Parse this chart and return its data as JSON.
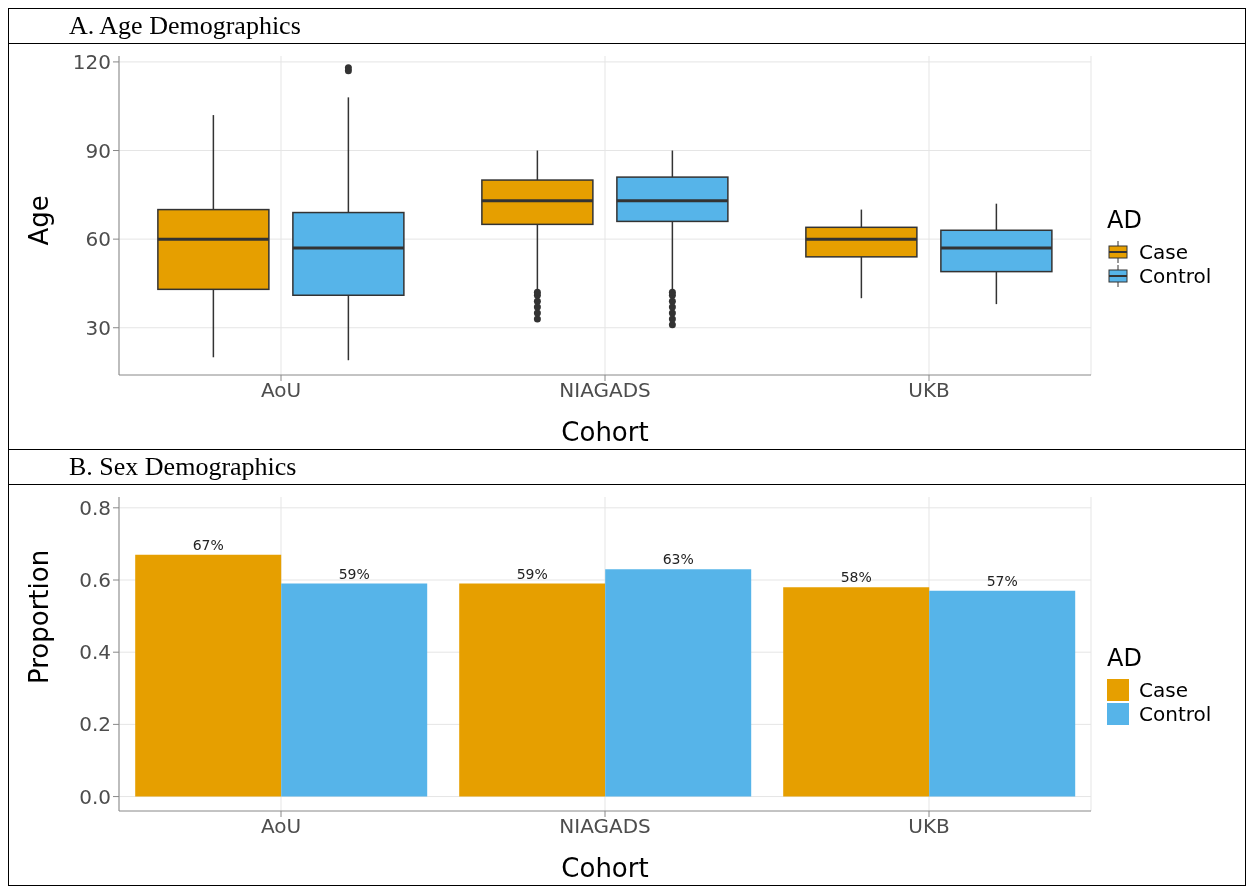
{
  "chart_data": [
    {
      "type": "box",
      "title": "A.  Age Demographics",
      "xlabel": "Cohort",
      "ylabel": "Age",
      "legend_title": "AD",
      "categories": [
        "AoU",
        "NIAGADS",
        "UKB"
      ],
      "series": [
        {
          "name": "Case",
          "color": "#e69f00",
          "boxes": [
            {
              "low": 20,
              "q1": 43,
              "median": 60,
              "q3": 70,
              "high": 102
            },
            {
              "low": 43,
              "q1": 65,
              "median": 73,
              "q3": 80,
              "high": 90,
              "outliers": [
                33,
                35,
                37,
                39,
                41,
                42
              ]
            },
            {
              "low": 40,
              "q1": 54,
              "median": 60,
              "q3": 64,
              "high": 70
            }
          ]
        },
        {
          "name": "Control",
          "color": "#56b4e9",
          "boxes": [
            {
              "low": 19,
              "q1": 41,
              "median": 57,
              "q3": 69,
              "high": 108,
              "outliers": [
                117,
                118
              ]
            },
            {
              "low": 43,
              "q1": 66,
              "median": 73,
              "q3": 81,
              "high": 90,
              "outliers": [
                31,
                33,
                35,
                37,
                39,
                41,
                42
              ]
            },
            {
              "low": 38,
              "q1": 49,
              "median": 57,
              "q3": 63,
              "high": 72
            }
          ]
        }
      ],
      "ylim": [
        14,
        122
      ],
      "yticks": [
        30,
        60,
        90,
        120
      ],
      "grid": true,
      "legend": "right"
    },
    {
      "type": "bar",
      "title": "B.  Sex Demographics",
      "xlabel": "Cohort",
      "ylabel": "Proportion",
      "legend_title": "AD",
      "categories": [
        "AoU",
        "NIAGADS",
        "UKB"
      ],
      "series": [
        {
          "name": "Case",
          "color": "#e69f00",
          "values": [
            0.67,
            0.59,
            0.58
          ],
          "value_labels": [
            "67%",
            "59%",
            "58%"
          ]
        },
        {
          "name": "Control",
          "color": "#56b4e9",
          "values": [
            0.59,
            0.63,
            0.57
          ],
          "value_labels": [
            "59%",
            "63%",
            "57%"
          ]
        }
      ],
      "ylim": [
        -0.04,
        0.83
      ],
      "yticks": [
        {
          "value": 0,
          "label": "0.0"
        },
        0.2,
        0.4,
        0.6,
        0.8
      ],
      "grid": true,
      "legend": "right"
    }
  ]
}
